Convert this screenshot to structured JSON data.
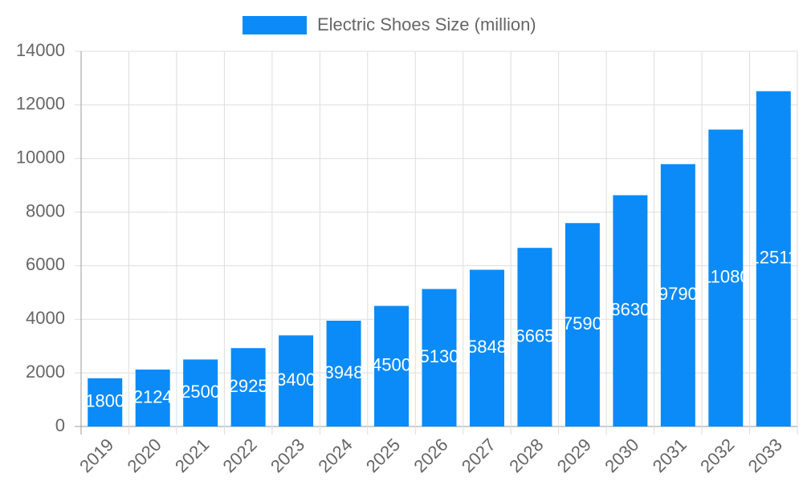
{
  "chart_data": {
    "type": "bar",
    "categories": [
      "2019",
      "2020",
      "2021",
      "2022",
      "2023",
      "2024",
      "2025",
      "2026",
      "2027",
      "2028",
      "2029",
      "2030",
      "2031",
      "2032",
      "2033"
    ],
    "series": [
      {
        "name": "Electric Shoes Size (million)",
        "color": "#0b8bf7",
        "values": [
          1800,
          2124,
          2500,
          2925,
          3400,
          3948,
          4500,
          5130,
          5848,
          6665,
          7590,
          8630,
          9790,
          11080,
          12511
        ]
      }
    ],
    "ylim": [
      0,
      14000
    ],
    "yticks": [
      0,
      2000,
      4000,
      6000,
      8000,
      10000,
      12000,
      14000
    ],
    "grid": true
  }
}
